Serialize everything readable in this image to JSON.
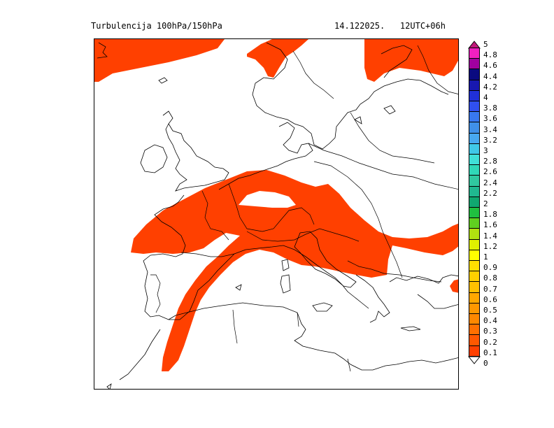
{
  "header": {
    "title": "Turbulencija 100hPa/150hPa",
    "valid": "14.122025.   12UTC+06h"
  },
  "map": {
    "region": "Europe",
    "fill_color": "#ff4000",
    "coastline_color": "#000000"
  },
  "legend": {
    "labels": [
      "5",
      "4.8",
      "4.6",
      "4.4",
      "4.2",
      "4",
      "3.8",
      "3.6",
      "3.4",
      "3.2",
      "3",
      "2.8",
      "2.6",
      "2.4",
      "2.2",
      "2",
      "1.8",
      "1.6",
      "1.4",
      "1.2",
      "1",
      "0.9",
      "0.8",
      "0.7",
      "0.6",
      "0.5",
      "0.4",
      "0.3",
      "0.2",
      "0.1",
      "0"
    ],
    "colors": [
      "#c0187a",
      "#f020c0",
      "#a000a0",
      "#0a0a80",
      "#1818b0",
      "#2030d8",
      "#3050f0",
      "#3878f0",
      "#4090e8",
      "#48a8f0",
      "#40c8e8",
      "#40e0d8",
      "#30d8b8",
      "#30c8a0",
      "#20b890",
      "#10a870",
      "#20c040",
      "#60d020",
      "#b0e010",
      "#e0f000",
      "#ffff00",
      "#ffe000",
      "#ffd000",
      "#ffc000",
      "#ffa800",
      "#ff9800",
      "#ff8800",
      "#ff7000",
      "#ff5800",
      "#ff4000",
      "#ffffff"
    ]
  }
}
